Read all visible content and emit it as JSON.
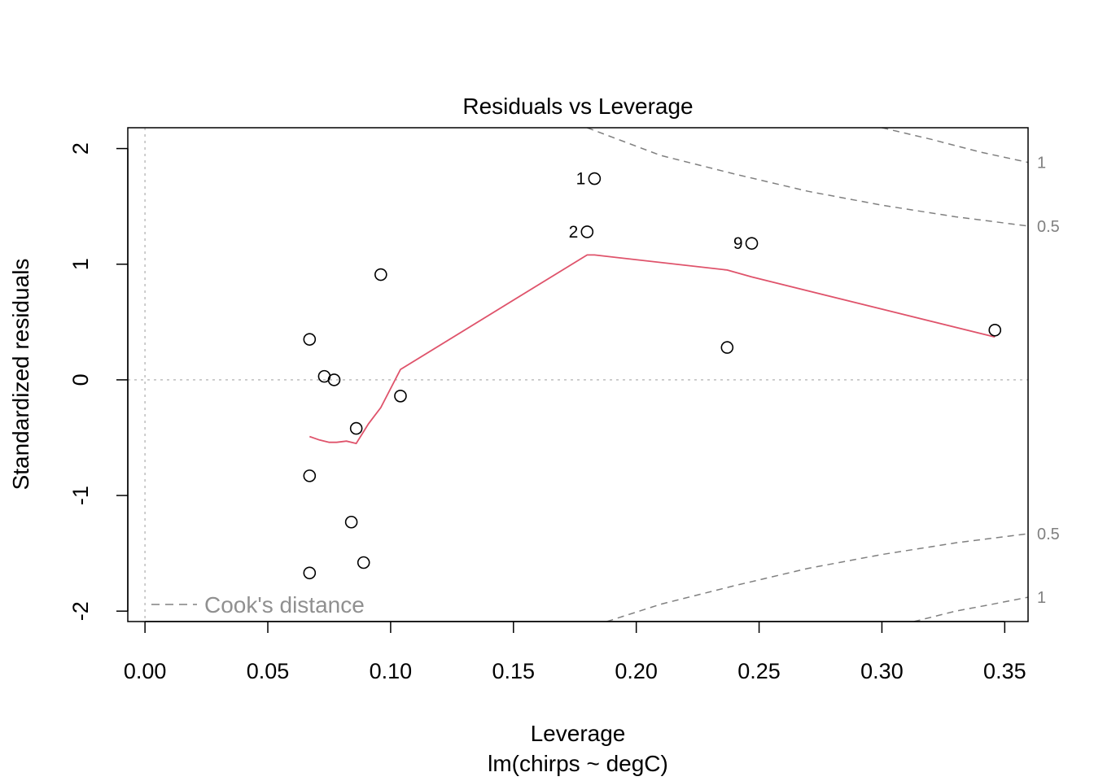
{
  "chart_data": {
    "type": "scatter",
    "title": "Residuals vs Leverage",
    "xlabel": "Leverage",
    "xsublabel": "lm(chirps ~ degC)",
    "ylabel": "Standardized residuals",
    "xlim": [
      -0.007,
      0.3595
    ],
    "ylim": [
      -2.09,
      2.18
    ],
    "xticks": [
      0.0,
      0.05,
      0.1,
      0.15,
      0.2,
      0.25,
      0.3,
      0.35
    ],
    "xtick_labels": [
      "0.00",
      "0.05",
      "0.10",
      "0.15",
      "0.20",
      "0.25",
      "0.30",
      "0.35"
    ],
    "yticks": [
      -2,
      -1,
      0,
      1,
      2
    ],
    "ytick_labels": [
      "-2",
      "-1",
      "0",
      "1",
      "2"
    ],
    "reference_lines": {
      "x": 0,
      "y": 0,
      "style": "dotted",
      "color": "#bebebe"
    },
    "points": [
      {
        "x": 0.183,
        "y": 1.74,
        "label": "1"
      },
      {
        "x": 0.18,
        "y": 1.28,
        "label": "2"
      },
      {
        "x": 0.247,
        "y": 1.18,
        "label": "9"
      },
      {
        "x": 0.096,
        "y": 0.91,
        "label": ""
      },
      {
        "x": 0.067,
        "y": 0.35,
        "label": ""
      },
      {
        "x": 0.346,
        "y": 0.43,
        "label": ""
      },
      {
        "x": 0.237,
        "y": 0.28,
        "label": ""
      },
      {
        "x": 0.073,
        "y": 0.03,
        "label": ""
      },
      {
        "x": 0.077,
        "y": 0.0,
        "label": ""
      },
      {
        "x": 0.104,
        "y": -0.14,
        "label": ""
      },
      {
        "x": 0.086,
        "y": -0.42,
        "label": ""
      },
      {
        "x": 0.067,
        "y": -0.83,
        "label": ""
      },
      {
        "x": 0.084,
        "y": -1.23,
        "label": ""
      },
      {
        "x": 0.089,
        "y": -1.58,
        "label": ""
      },
      {
        "x": 0.067,
        "y": -1.67,
        "label": ""
      }
    ],
    "smooth_line": {
      "color": "#DF536B",
      "x": [
        0.067,
        0.071,
        0.075,
        0.078,
        0.082,
        0.086,
        0.091,
        0.096,
        0.104,
        0.18,
        0.183,
        0.237,
        0.247,
        0.346
      ],
      "y": [
        -0.49,
        -0.52,
        -0.54,
        -0.54,
        -0.53,
        -0.55,
        -0.38,
        -0.24,
        0.09,
        1.08,
        1.08,
        0.95,
        0.89,
        0.37
      ]
    },
    "cooks_distance": {
      "color": "#808080",
      "style": "dashed",
      "levels": [
        {
          "label": "0.5",
          "upper": {
            "x": [
              0.18,
              0.21,
              0.24,
              0.27,
              0.3,
              0.33,
              0.3595
            ],
            "y": [
              2.18,
              1.94,
              1.78,
              1.63,
              1.51,
              1.41,
              1.33
            ]
          },
          "lower": {
            "x": [
              0.188,
              0.21,
              0.24,
              0.27,
              0.3,
              0.33,
              0.3595
            ],
            "y": [
              -2.09,
              -1.94,
              -1.78,
              -1.63,
              -1.51,
              -1.41,
              -1.33
            ]
          }
        },
        {
          "label": "1",
          "upper": {
            "x": [
              0.3,
              0.32,
              0.34,
              0.3595
            ],
            "y": [
              2.18,
              2.08,
              1.97,
              1.88
            ]
          },
          "lower": {
            "x": [
              0.313,
              0.33,
              0.345,
              0.3595
            ],
            "y": [
              -2.09,
              -2.0,
              -1.94,
              -1.88
            ]
          }
        }
      ]
    },
    "legend": {
      "label": "Cook's distance",
      "placement": "bottom-left"
    }
  }
}
